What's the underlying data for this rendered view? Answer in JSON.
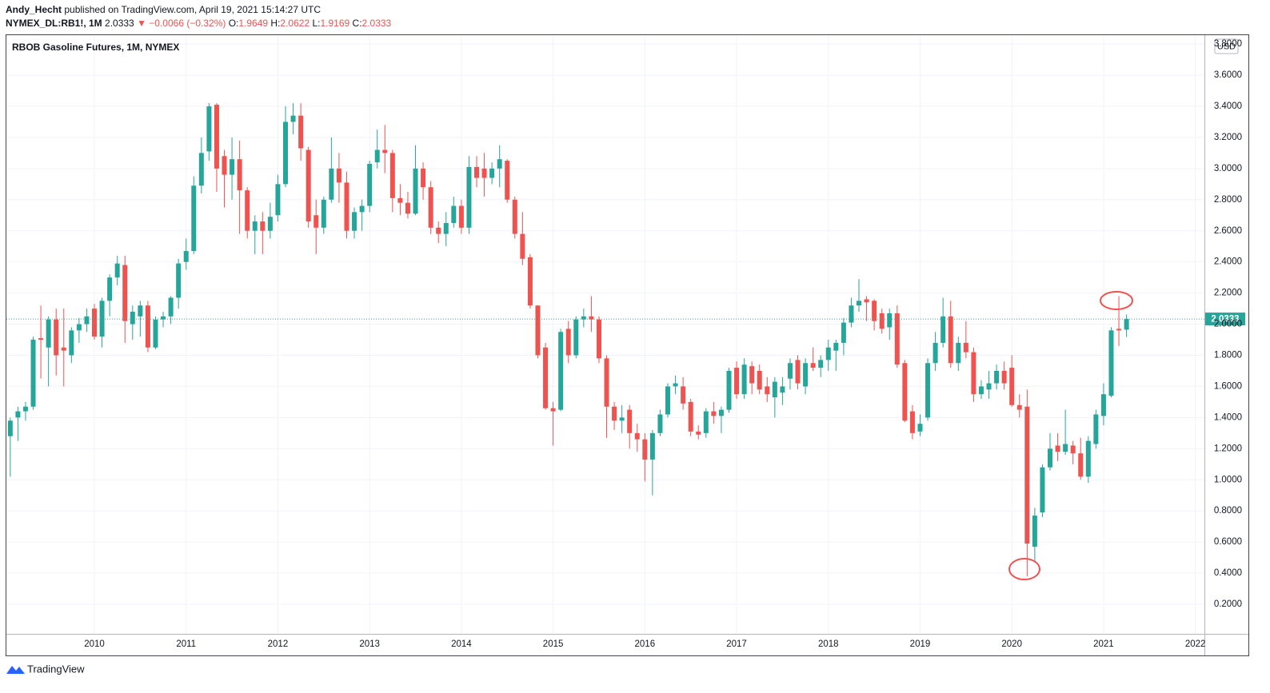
{
  "header": {
    "author": "Andy_Hecht",
    "published": "published on TradingView.com, April 19, 2021 15:14:27 UTC",
    "symbol": "NYMEX_DL:RB1!, 1M",
    "change": "▼ −0.0066 (−0.32%)",
    "ohlc_labels": [
      "O:",
      "H:",
      "L:",
      "C:"
    ]
  },
  "footer": {
    "brand": "TradingView"
  },
  "chart_data": {
    "type": "candlestick",
    "title": "RBOB Gasoline Futures, 1M, NYMEX",
    "currency": "USD",
    "up_color": "#26a69a",
    "down_color": "#ef5350",
    "grid": true,
    "ylim": [
      0.01,
      3.857
    ],
    "yticks": [
      {
        "value": 0.2,
        "label": "0.2000"
      },
      {
        "value": 0.4,
        "label": "0.4000"
      },
      {
        "value": 0.6,
        "label": "0.6000"
      },
      {
        "value": 0.8,
        "label": "0.8000"
      },
      {
        "value": 1.0,
        "label": "1.0000"
      },
      {
        "value": 1.2,
        "label": "1.2000"
      },
      {
        "value": 1.4,
        "label": "1.4000"
      },
      {
        "value": 1.6,
        "label": "1.6000"
      },
      {
        "value": 1.8,
        "label": "1.8000"
      },
      {
        "value": 2.0,
        "label": "2.0000"
      },
      {
        "value": 2.2,
        "label": "2.2000"
      },
      {
        "value": 2.4,
        "label": "2.4000"
      },
      {
        "value": 2.6,
        "label": "2.6000"
      },
      {
        "value": 2.8,
        "label": "2.8000"
      },
      {
        "value": 3.0,
        "label": "3.0000"
      },
      {
        "value": 3.2,
        "label": "3.2000"
      },
      {
        "value": 3.4,
        "label": "3.4000"
      },
      {
        "value": 3.6,
        "label": "3.6000"
      },
      {
        "value": 3.8,
        "label": "3.8000"
      }
    ],
    "categories": [
      null,
      null,
      null,
      null,
      null,
      null,
      null,
      null,
      null,
      null,
      null,
      "2010",
      null,
      null,
      null,
      null,
      null,
      null,
      null,
      null,
      null,
      null,
      null,
      "2011",
      null,
      null,
      null,
      null,
      null,
      null,
      null,
      null,
      null,
      null,
      null,
      "2012",
      null,
      null,
      null,
      null,
      null,
      null,
      null,
      null,
      null,
      null,
      null,
      "2013",
      null,
      null,
      null,
      null,
      null,
      null,
      null,
      null,
      null,
      null,
      null,
      "2014",
      null,
      null,
      null,
      null,
      null,
      null,
      null,
      null,
      null,
      null,
      null,
      "2015",
      null,
      null,
      null,
      null,
      null,
      null,
      null,
      null,
      null,
      null,
      null,
      "2016",
      null,
      null,
      null,
      null,
      null,
      null,
      null,
      null,
      null,
      null,
      null,
      "2017",
      null,
      null,
      null,
      null,
      null,
      null,
      null,
      null,
      null,
      null,
      null,
      "2018",
      null,
      null,
      null,
      null,
      null,
      null,
      null,
      null,
      null,
      null,
      null,
      "2019",
      null,
      null,
      null,
      null,
      null,
      null,
      null,
      null,
      null,
      null,
      null,
      "2020",
      null,
      null,
      null,
      null,
      null,
      null,
      null,
      null,
      null,
      null,
      null,
      "2021",
      null,
      null,
      null,
      null,
      null,
      null,
      null,
      null,
      null,
      null,
      null,
      "2022"
    ],
    "open": [
      1.28,
      1.4,
      1.44,
      1.47,
      1.91,
      1.85,
      2.03,
      1.85,
      1.8,
      1.96,
      2.0,
      2.1,
      1.92,
      2.15,
      2.3,
      2.38,
      2.0,
      2.05,
      2.12,
      1.85,
      2.03,
      2.05,
      2.17,
      2.4,
      2.47,
      2.89,
      3.11,
      3.41,
      3.08,
      2.96,
      3.06,
      2.86,
      2.6,
      2.66,
      2.6,
      2.7,
      2.9,
      3.3,
      3.34,
      3.12,
      2.7,
      2.62,
      2.8,
      3.0,
      2.91,
      2.6,
      2.72,
      2.76,
      3.04,
      3.12,
      3.1,
      2.81,
      2.78,
      2.71,
      3.0,
      2.88,
      2.62,
      2.58,
      2.65,
      2.76,
      2.62,
      3.01,
      3.0,
      2.94,
      3.0,
      3.05,
      2.8,
      2.58,
      2.43,
      2.12,
      1.85,
      1.46,
      1.45,
      1.97,
      1.8,
      2.03,
      2.05,
      2.03,
      1.78,
      1.47,
      1.38,
      1.45,
      1.3,
      1.26,
      1.13,
      1.3,
      1.42,
      1.6,
      1.6,
      1.5,
      1.31,
      1.3,
      1.44,
      1.41,
      1.45,
      1.72,
      1.55,
      1.73,
      1.7,
      1.6,
      1.53,
      1.56,
      1.65,
      1.77,
      1.6,
      1.75,
      1.72,
      1.77,
      1.83,
      1.88,
      2.01,
      2.12,
      2.16,
      2.15,
      2.07,
      1.98,
      2.07,
      1.75,
      1.44,
      1.31,
      1.4,
      1.75,
      1.88,
      2.05,
      1.75,
      1.88,
      1.82,
      1.55,
      1.58,
      1.62,
      1.7,
      1.72,
      1.48,
      1.47,
      0.57,
      0.79,
      1.08,
      1.22,
      1.18,
      1.22,
      1.17,
      1.02,
      1.23,
      1.41,
      1.54,
      1.97,
      1.9649,
      null,
      null,
      null,
      null,
      null,
      null,
      null,
      null,
      null
    ],
    "high": [
      1.4,
      1.47,
      1.5,
      1.92,
      2.12,
      2.05,
      2.1,
      2.1,
      1.98,
      2.04,
      2.1,
      2.13,
      2.17,
      2.32,
      2.44,
      2.44,
      2.12,
      2.15,
      2.15,
      2.05,
      2.08,
      2.18,
      2.42,
      2.55,
      2.95,
      3.2,
      3.42,
      3.42,
      3.12,
      3.2,
      3.18,
      2.88,
      2.7,
      2.72,
      2.78,
      2.96,
      3.4,
      3.42,
      3.42,
      3.14,
      2.8,
      2.82,
      3.2,
      3.1,
      2.98,
      2.75,
      2.8,
      3.05,
      3.25,
      3.28,
      3.12,
      2.9,
      2.85,
      3.15,
      3.04,
      2.92,
      2.66,
      2.72,
      2.82,
      2.8,
      3.08,
      3.08,
      3.1,
      3.04,
      3.15,
      3.06,
      2.82,
      2.72,
      2.45,
      2.12,
      1.88,
      1.5,
      1.97,
      2.02,
      2.05,
      2.1,
      2.18,
      2.05,
      1.8,
      1.5,
      1.48,
      1.48,
      1.36,
      1.3,
      1.32,
      1.45,
      1.62,
      1.67,
      1.66,
      1.52,
      1.35,
      1.46,
      1.5,
      1.47,
      1.72,
      1.76,
      1.78,
      1.76,
      1.74,
      1.66,
      1.66,
      1.66,
      1.78,
      1.8,
      1.78,
      1.85,
      1.8,
      1.9,
      1.9,
      2.04,
      2.17,
      2.29,
      2.18,
      2.16,
      2.1,
      2.1,
      2.12,
      1.77,
      1.48,
      1.42,
      1.78,
      1.95,
      2.17,
      2.15,
      1.92,
      2.02,
      1.85,
      1.64,
      1.7,
      1.74,
      1.76,
      1.8,
      1.55,
      1.58,
      0.82,
      1.1,
      1.3,
      1.3,
      1.45,
      1.25,
      1.27,
      1.28,
      1.45,
      1.62,
      1.98,
      2.18,
      2.0622,
      null,
      null,
      null,
      null,
      null,
      null,
      null,
      null,
      null
    ],
    "low": [
      1.02,
      1.25,
      1.38,
      1.45,
      1.65,
      1.6,
      1.67,
      1.6,
      1.75,
      1.88,
      1.95,
      1.9,
      1.85,
      2.05,
      2.25,
      1.88,
      1.9,
      1.92,
      1.82,
      1.84,
      1.98,
      2.0,
      2.1,
      2.35,
      2.45,
      2.84,
      3.05,
      2.85,
      2.75,
      2.8,
      2.58,
      2.55,
      2.45,
      2.45,
      2.55,
      2.66,
      2.88,
      3.22,
      3.05,
      2.62,
      2.45,
      2.58,
      2.78,
      2.78,
      2.55,
      2.55,
      2.6,
      2.72,
      3.0,
      2.97,
      2.72,
      2.7,
      2.68,
      2.7,
      2.8,
      2.58,
      2.52,
      2.5,
      2.62,
      2.58,
      2.58,
      2.88,
      2.82,
      2.9,
      2.88,
      2.78,
      2.55,
      2.38,
      2.1,
      1.78,
      1.45,
      1.22,
      1.44,
      1.75,
      1.78,
      1.98,
      1.95,
      1.75,
      1.27,
      1.32,
      1.3,
      1.2,
      1.18,
      0.99,
      0.9,
      1.28,
      1.4,
      1.55,
      1.45,
      1.28,
      1.26,
      1.27,
      1.36,
      1.3,
      1.43,
      1.52,
      1.52,
      1.55,
      1.55,
      1.5,
      1.4,
      1.48,
      1.58,
      1.58,
      1.55,
      1.7,
      1.66,
      1.7,
      1.7,
      1.8,
      1.98,
      2.08,
      2.02,
      1.96,
      1.94,
      1.9,
      1.72,
      1.37,
      1.26,
      1.28,
      1.38,
      1.7,
      1.85,
      1.72,
      1.7,
      1.78,
      1.5,
      1.52,
      1.52,
      1.58,
      1.58,
      1.47,
      1.4,
      0.38,
      0.48,
      0.76,
      1.06,
      1.12,
      1.16,
      1.1,
      1.0,
      0.98,
      1.2,
      1.35,
      1.53,
      1.86,
      1.9169,
      null,
      null,
      null,
      null,
      null,
      null,
      null,
      null,
      null
    ],
    "close": [
      1.38,
      1.44,
      1.47,
      1.9,
      1.9,
      2.03,
      1.8,
      1.83,
      1.96,
      2.0,
      2.05,
      1.92,
      2.15,
      2.3,
      2.39,
      2.02,
      2.08,
      2.12,
      1.85,
      2.03,
      2.05,
      2.17,
      2.39,
      2.47,
      2.89,
      3.1,
      3.4,
      3.0,
      2.96,
      3.06,
      2.86,
      2.6,
      2.66,
      2.6,
      2.69,
      2.9,
      3.3,
      3.34,
      3.13,
      2.66,
      2.62,
      2.8,
      3.0,
      2.91,
      2.6,
      2.72,
      2.76,
      3.03,
      3.12,
      3.1,
      2.81,
      2.78,
      2.71,
      3.0,
      2.88,
      2.62,
      2.58,
      2.65,
      2.76,
      2.62,
      3.01,
      2.94,
      2.94,
      3.0,
      3.06,
      2.8,
      2.58,
      2.42,
      2.12,
      1.8,
      1.46,
      1.44,
      1.95,
      1.8,
      2.03,
      2.05,
      2.03,
      1.78,
      1.47,
      1.38,
      1.4,
      1.3,
      1.26,
      1.13,
      1.3,
      1.42,
      1.6,
      1.62,
      1.49,
      1.31,
      1.29,
      1.44,
      1.41,
      1.45,
      1.7,
      1.55,
      1.74,
      1.62,
      1.58,
      1.55,
      1.63,
      1.6,
      1.75,
      1.62,
      1.75,
      1.72,
      1.77,
      1.85,
      1.88,
      2.01,
      2.12,
      2.15,
      2.14,
      2.02,
      1.97,
      2.07,
      1.74,
      1.38,
      1.3,
      1.36,
      1.75,
      1.88,
      2.05,
      1.75,
      1.88,
      1.82,
      1.55,
      1.6,
      1.62,
      1.7,
      1.62,
      1.48,
      1.45,
      0.59,
      0.77,
      1.08,
      1.2,
      1.18,
      1.23,
      1.17,
      1.02,
      1.25,
      1.42,
      1.55,
      1.96,
      1.96,
      2.0333,
      null,
      null,
      null,
      null,
      null,
      null,
      null,
      null,
      null
    ]
  }
}
